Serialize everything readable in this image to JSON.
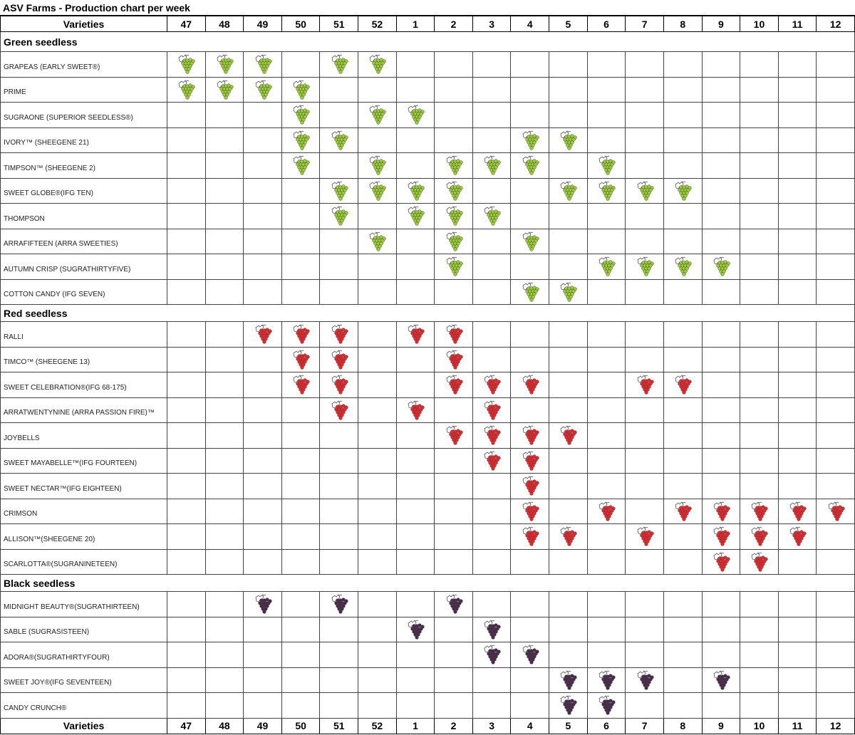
{
  "title": "ASV Farms - Production chart per week",
  "header_label": "Varieties",
  "weeks": [
    "47",
    "48",
    "49",
    "50",
    "51",
    "52",
    "1",
    "2",
    "3",
    "4",
    "5",
    "6",
    "7",
    "8",
    "9",
    "10",
    "11",
    "12"
  ],
  "colors": {
    "green": "#9acd32",
    "red": "#e8262b",
    "black": "#4a2a4a"
  },
  "sections": [
    {
      "name": "Green seedless",
      "color": "green",
      "rows": [
        {
          "label": "GRAPEAS (EARLY SWEET®)",
          "weeks": [
            "47",
            "48",
            "49",
            "51",
            "52"
          ]
        },
        {
          "label": "PRIME",
          "weeks": [
            "47",
            "48",
            "49",
            "50"
          ]
        },
        {
          "label": "SUGRAONE (SUPERIOR SEEDLESS®)",
          "weeks": [
            "50",
            "52",
            "1"
          ]
        },
        {
          "label": "IVORY™ (SHEEGENE 21)",
          "weeks": [
            "50",
            "51",
            "4",
            "5"
          ]
        },
        {
          "label": "TIMPSON™ (SHEEGENE 2)",
          "weeks": [
            "50",
            "52",
            "2",
            "3",
            "4",
            "6"
          ]
        },
        {
          "label": "SWEET GLOBE®(IFG TEN)",
          "weeks": [
            "51",
            "52",
            "1",
            "2",
            "5",
            "6",
            "7",
            "8"
          ]
        },
        {
          "label": "THOMPSON",
          "weeks": [
            "51",
            "1",
            "2",
            "3"
          ]
        },
        {
          "label": "ARRAFIFTEEN (ARRA SWEETIES)",
          "weeks": [
            "52",
            "2",
            "4"
          ]
        },
        {
          "label": "AUTUMN CRISP (SUGRATHIRTYFIVE)",
          "weeks": [
            "2",
            "6",
            "7",
            "8",
            "9"
          ]
        },
        {
          "label": "COTTON CANDY (IFG SEVEN)",
          "weeks": [
            "4",
            "5"
          ]
        }
      ]
    },
    {
      "name": "Red seedless",
      "color": "red",
      "rows": [
        {
          "label": "RALLI",
          "weeks": [
            "49",
            "50",
            "51",
            "1",
            "2"
          ]
        },
        {
          "label": "TIMCO™ (SHEEGENE 13)",
          "weeks": [
            "50",
            "51",
            "2"
          ]
        },
        {
          "label": "SWEET CELEBRATION®(IFG 68-175)",
          "weeks": [
            "50",
            "51",
            "2",
            "3",
            "4",
            "7",
            "8"
          ]
        },
        {
          "label": "ARRATWENTYNINE (ARRA PASSION FIRE)™",
          "weeks": [
            "51",
            "1",
            "3"
          ]
        },
        {
          "label": "JOYBELLS",
          "weeks": [
            "2",
            "3",
            "4",
            "5"
          ]
        },
        {
          "label": "SWEET MAYABELLE™(IFG FOURTEEN)",
          "weeks": [
            "3",
            "4"
          ]
        },
        {
          "label": "SWEET NECTAR™(IFG EIGHTEEN)",
          "weeks": [
            "4"
          ]
        },
        {
          "label": "CRIMSON",
          "weeks": [
            "4",
            "6",
            "8",
            "9",
            "10",
            "11",
            "12"
          ]
        },
        {
          "label": "ALLISON™(SHEEGENE 20)",
          "weeks": [
            "4",
            "5",
            "7",
            "9",
            "10",
            "11"
          ]
        },
        {
          "label": "SCARLOTTA®(SUGRANINETEEN)",
          "weeks": [
            "9",
            "10"
          ]
        }
      ]
    },
    {
      "name": "Black seedless",
      "color": "black",
      "rows": [
        {
          "label": "MIDNIGHT BEAUTY®(SUGRATHIRTEEN)",
          "weeks": [
            "49",
            "51",
            "2"
          ]
        },
        {
          "label": "SABLE (SUGRASISTEEN)",
          "weeks": [
            "1",
            "3"
          ]
        },
        {
          "label": "ADORA®(SUGRATHIRTYFOUR)",
          "weeks": [
            "3",
            "4"
          ]
        },
        {
          "label": "SWEET JOY®(IFG SEVENTEEN)",
          "weeks": [
            "5",
            "6",
            "7",
            "9"
          ]
        },
        {
          "label": "CANDY CRUNCH®",
          "weeks": [
            "5",
            "6"
          ]
        }
      ]
    }
  ]
}
